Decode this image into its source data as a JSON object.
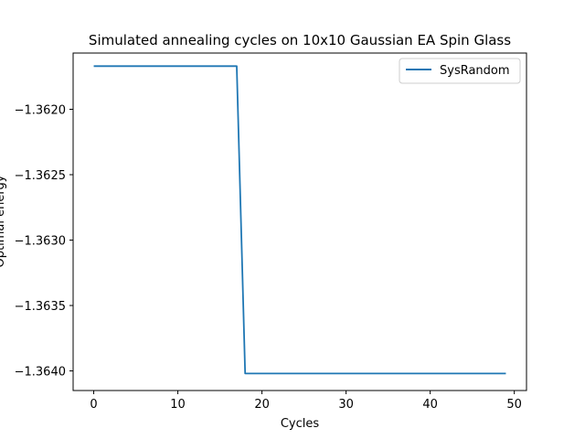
{
  "chart_data": {
    "type": "line",
    "title": "Simulated annealing cycles on 10x10 Gaussian EA Spin Glass",
    "xlabel": "Cycles",
    "ylabel": "Optimal energy",
    "xlim": [
      -2.45,
      51.45
    ],
    "ylim": [
      -1.36415,
      -1.36157
    ],
    "xticks": [
      0,
      10,
      20,
      30,
      40,
      50
    ],
    "xtick_labels": [
      "0",
      "10",
      "20",
      "30",
      "40",
      "50"
    ],
    "yticks": [
      -1.362,
      -1.3625,
      -1.363,
      -1.3635,
      -1.364
    ],
    "ytick_labels": [
      "−1.3620",
      "−1.3625",
      "−1.3630",
      "−1.3635",
      "−1.3640"
    ],
    "grid": false,
    "legend_position": "top-right",
    "colors": {
      "line": "#1f77b4",
      "axis": "#000000",
      "legend_border": "#cccccc"
    },
    "series": [
      {
        "name": "SysRandom",
        "x": [
          0,
          1,
          2,
          3,
          4,
          5,
          6,
          7,
          8,
          9,
          10,
          11,
          12,
          13,
          14,
          15,
          16,
          17,
          18,
          19,
          20,
          21,
          22,
          23,
          24,
          25,
          26,
          27,
          28,
          29,
          30,
          31,
          32,
          33,
          34,
          35,
          36,
          37,
          38,
          39,
          40,
          41,
          42,
          43,
          44,
          45,
          46,
          47,
          48,
          49
        ],
        "y": [
          -1.36167,
          -1.36167,
          -1.36167,
          -1.36167,
          -1.36167,
          -1.36167,
          -1.36167,
          -1.36167,
          -1.36167,
          -1.36167,
          -1.36167,
          -1.36167,
          -1.36167,
          -1.36167,
          -1.36167,
          -1.36167,
          -1.36167,
          -1.36167,
          -1.36402,
          -1.36402,
          -1.36402,
          -1.36402,
          -1.36402,
          -1.36402,
          -1.36402,
          -1.36402,
          -1.36402,
          -1.36402,
          -1.36402,
          -1.36402,
          -1.36402,
          -1.36402,
          -1.36402,
          -1.36402,
          -1.36402,
          -1.36402,
          -1.36402,
          -1.36402,
          -1.36402,
          -1.36402,
          -1.36402,
          -1.36402,
          -1.36402,
          -1.36402,
          -1.36402,
          -1.36402,
          -1.36402,
          -1.36402,
          -1.36402,
          -1.36402
        ]
      }
    ]
  }
}
